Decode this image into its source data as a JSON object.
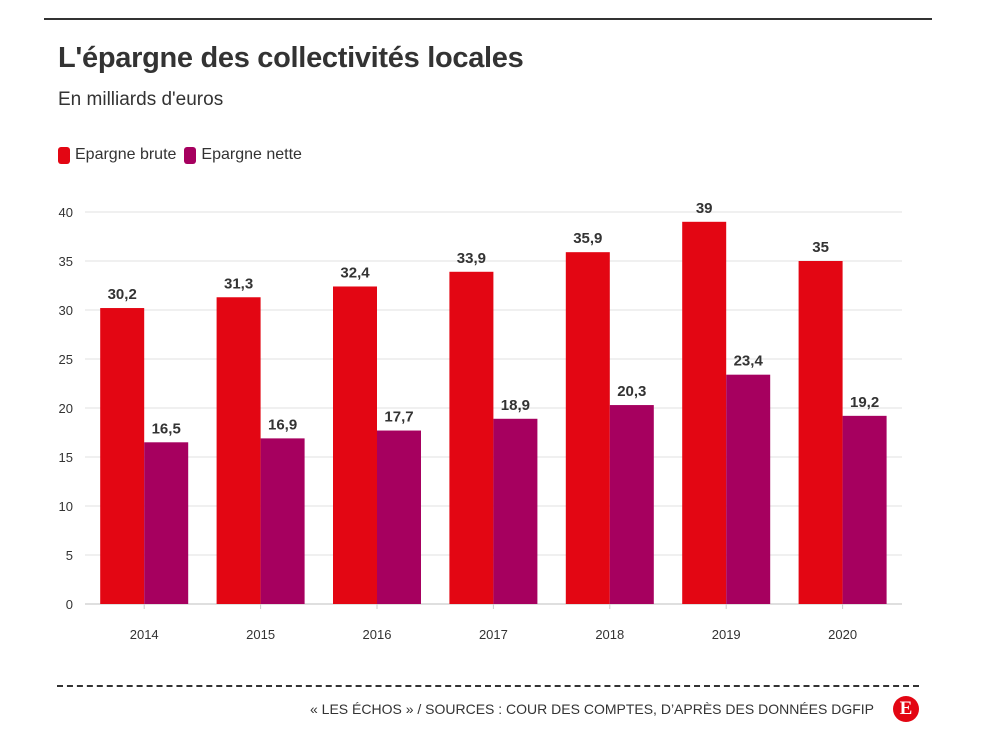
{
  "title": "L'épargne des collectivités locales",
  "subtitle": "En milliards d'euros",
  "source": "« LES ÉCHOS » / SOURCES : COUR DES COMPTES, D’APRÈS DES DONNÉES DGFIP",
  "logo": "E",
  "colors": {
    "brute": "#e30613",
    "nette": "#a6005f",
    "grid": "#e6e6e6",
    "text": "#333333"
  },
  "chart_data": {
    "type": "bar",
    "categories": [
      "2014",
      "2015",
      "2016",
      "2017",
      "2018",
      "2019",
      "2020"
    ],
    "series": [
      {
        "name": "Epargne brute",
        "values": [
          30.2,
          31.3,
          32.4,
          33.9,
          35.9,
          39,
          35
        ],
        "labels": [
          "30,2",
          "31,3",
          "32,4",
          "33,9",
          "35,9",
          "39",
          "35"
        ]
      },
      {
        "name": "Epargne nette",
        "values": [
          16.5,
          16.9,
          17.7,
          18.9,
          20.3,
          23.4,
          19.2
        ],
        "labels": [
          "16,5",
          "16,9",
          "17,7",
          "18,9",
          "20,3",
          "23,4",
          "19,2"
        ]
      }
    ],
    "ylim": [
      0,
      40
    ],
    "yticks": [
      "0",
      "5",
      "10",
      "15",
      "20",
      "25",
      "30",
      "35",
      "40"
    ],
    "grid": true,
    "legend": "top-left"
  }
}
